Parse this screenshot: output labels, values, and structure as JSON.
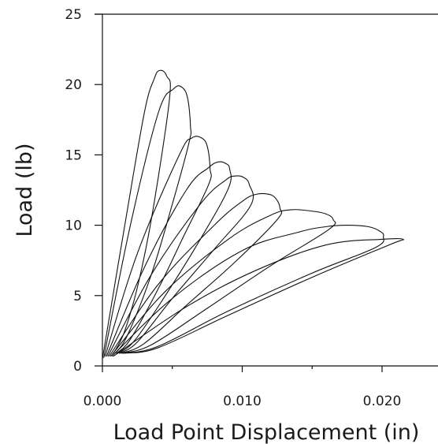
{
  "chart_data": {
    "type": "line",
    "title": "",
    "xlabel": "Load Point Displacement (in)",
    "ylabel": "Load (lb)",
    "xlim": [
      0,
      0.025
    ],
    "ylim": [
      0,
      25
    ],
    "x_ticks": [
      {
        "value": 0.0,
        "label": "0.000"
      },
      {
        "value": 0.01,
        "label": "0.010"
      },
      {
        "value": 0.02,
        "label": "0.020"
      }
    ],
    "y_ticks": [
      {
        "value": 0,
        "label": "0"
      },
      {
        "value": 5,
        "label": "5"
      },
      {
        "value": 10,
        "label": "10"
      },
      {
        "value": 15,
        "label": "15"
      },
      {
        "value": 20,
        "label": "20"
      },
      {
        "value": 25,
        "label": "25"
      }
    ],
    "grid": false,
    "legend": "none",
    "series": [
      {
        "points": [
          [
            0.0,
            0.5
          ],
          [
            0.0016,
            10.0
          ],
          [
            0.003,
            18.0
          ],
          [
            0.0037,
            20.4
          ],
          [
            0.0041,
            21.0
          ],
          [
            0.0046,
            20.6
          ],
          [
            0.0048,
            19.0
          ],
          [
            0.0036,
            11.0
          ],
          [
            0.0026,
            6.0
          ],
          [
            0.0016,
            2.5
          ],
          [
            0.0008,
            0.9
          ]
        ]
      },
      {
        "points": [
          [
            0.0001,
            0.6
          ],
          [
            0.002,
            10.0
          ],
          [
            0.004,
            18.0
          ],
          [
            0.0051,
            19.7
          ],
          [
            0.0057,
            19.8
          ],
          [
            0.0061,
            19.0
          ],
          [
            0.0063,
            17.0
          ],
          [
            0.0062,
            15.9
          ],
          [
            0.005,
            11.5
          ],
          [
            0.0035,
            6.5
          ],
          [
            0.0018,
            2.2
          ],
          [
            0.0009,
            0.9
          ]
        ]
      },
      {
        "points": [
          [
            0.0002,
            0.7
          ],
          [
            0.0025,
            8.0
          ],
          [
            0.0055,
            15.0
          ],
          [
            0.0064,
            16.2
          ],
          [
            0.0071,
            16.2
          ],
          [
            0.0075,
            15.6
          ],
          [
            0.0077,
            14.0
          ],
          [
            0.0076,
            12.9
          ],
          [
            0.0058,
            9.2
          ],
          [
            0.004,
            5.5
          ],
          [
            0.002,
            1.9
          ],
          [
            0.001,
            0.9
          ]
        ]
      },
      {
        "points": [
          [
            0.0003,
            0.7
          ],
          [
            0.003,
            7.0
          ],
          [
            0.006,
            12.5
          ],
          [
            0.0076,
            14.1
          ],
          [
            0.0083,
            14.5
          ],
          [
            0.0088,
            14.4
          ],
          [
            0.0091,
            14.0
          ],
          [
            0.009,
            12.6
          ],
          [
            0.007,
            9.0
          ],
          [
            0.0045,
            5.0
          ],
          [
            0.0023,
            1.8
          ],
          [
            0.0011,
            0.9
          ]
        ]
      },
      {
        "points": [
          [
            0.0004,
            0.7
          ],
          [
            0.0035,
            6.5
          ],
          [
            0.007,
            11.5
          ],
          [
            0.0088,
            13.2
          ],
          [
            0.0095,
            13.5
          ],
          [
            0.0101,
            13.4
          ],
          [
            0.0105,
            12.9
          ],
          [
            0.0106,
            11.4
          ],
          [
            0.008,
            8.3
          ],
          [
            0.005,
            4.8
          ],
          [
            0.0025,
            1.7
          ],
          [
            0.0012,
            0.9
          ]
        ]
      },
      {
        "points": [
          [
            0.0005,
            0.7
          ],
          [
            0.004,
            5.8
          ],
          [
            0.008,
            10.0
          ],
          [
            0.01,
            11.7
          ],
          [
            0.011,
            12.2
          ],
          [
            0.0119,
            12.2
          ],
          [
            0.0124,
            11.9
          ],
          [
            0.0127,
            11.2
          ],
          [
            0.0125,
            10.4
          ],
          [
            0.0095,
            7.4
          ],
          [
            0.006,
            4.3
          ],
          [
            0.003,
            1.6
          ],
          [
            0.0013,
            0.9
          ]
        ]
      },
      {
        "points": [
          [
            0.0006,
            0.7
          ],
          [
            0.0045,
            5.3
          ],
          [
            0.009,
            9.0
          ],
          [
            0.012,
            10.7
          ],
          [
            0.0135,
            11.1
          ],
          [
            0.015,
            11.0
          ],
          [
            0.016,
            10.8
          ],
          [
            0.0165,
            10.4
          ],
          [
            0.0162,
            9.7
          ],
          [
            0.012,
            7.1
          ],
          [
            0.0075,
            4.1
          ],
          [
            0.0035,
            1.5
          ],
          [
            0.0014,
            0.9
          ]
        ]
      },
      {
        "points": [
          [
            0.0007,
            0.7
          ],
          [
            0.005,
            4.8
          ],
          [
            0.01,
            8.2
          ],
          [
            0.014,
            9.5
          ],
          [
            0.016,
            9.9
          ],
          [
            0.0175,
            10.0
          ],
          [
            0.019,
            9.9
          ],
          [
            0.0198,
            9.6
          ],
          [
            0.0201,
            9.2
          ],
          [
            0.0195,
            8.4
          ],
          [
            0.015,
            6.6
          ],
          [
            0.009,
            3.9
          ],
          [
            0.004,
            1.4
          ],
          [
            0.0015,
            0.9
          ]
        ]
      },
      {
        "points": [
          [
            0.0008,
            0.7
          ],
          [
            0.006,
            4.2
          ],
          [
            0.011,
            6.8
          ],
          [
            0.016,
            8.6
          ],
          [
            0.02,
            9.0
          ],
          [
            0.0215,
            9.0
          ],
          [
            0.0205,
            8.6
          ],
          [
            0.015,
            6.3
          ],
          [
            0.009,
            3.6
          ],
          [
            0.004,
            1.3
          ],
          [
            0.0016,
            0.9
          ]
        ]
      }
    ]
  }
}
